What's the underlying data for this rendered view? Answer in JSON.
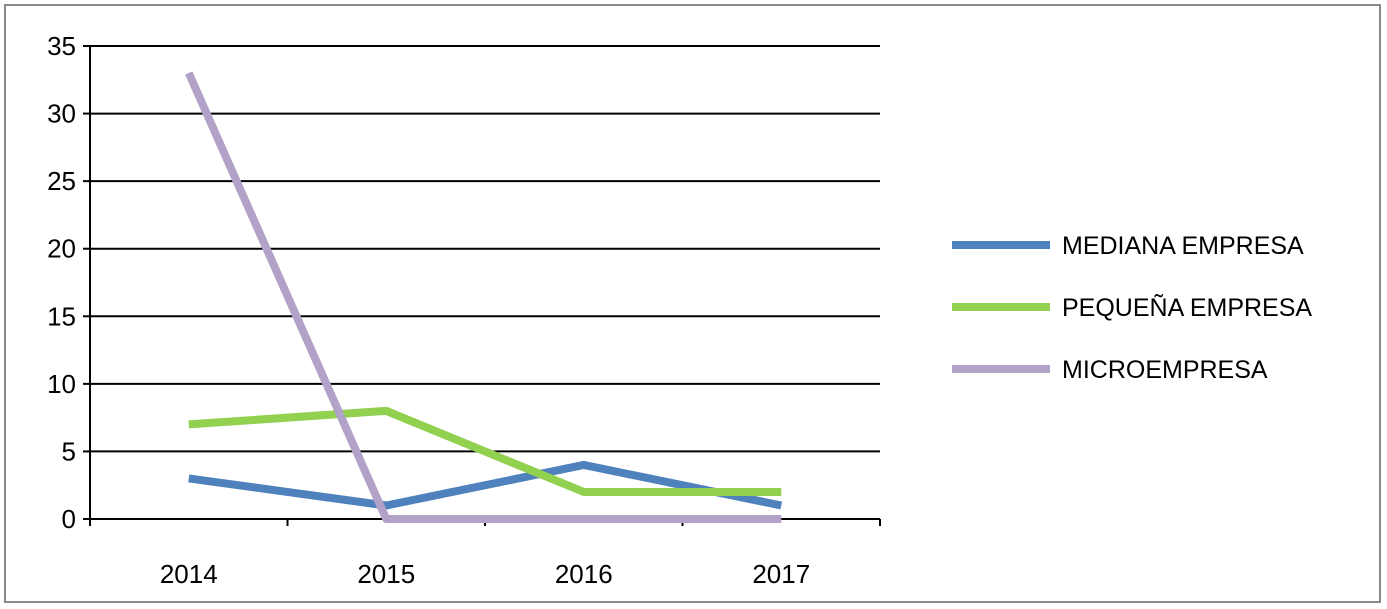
{
  "chart_data": {
    "type": "line",
    "title": "",
    "xlabel": "",
    "ylabel": "",
    "categories": [
      "2014",
      "2015",
      "2016",
      "2017"
    ],
    "ylim": [
      0,
      35
    ],
    "yticks": [
      "0",
      "5",
      "10",
      "15",
      "20",
      "25",
      "30",
      "35"
    ],
    "grid": true,
    "legend_position": "right",
    "series": [
      {
        "name": "MEDIANA EMPRESA",
        "values": [
          3,
          1,
          4,
          1
        ],
        "color": "#4f81bd"
      },
      {
        "name": "PEQUEÑA EMPRESA",
        "values": [
          7,
          8,
          2,
          2
        ],
        "color": "#92d050"
      },
      {
        "name": "MICROEMPRESA",
        "values": [
          33,
          0,
          0,
          0
        ],
        "color": "#b3a2c7"
      }
    ]
  }
}
